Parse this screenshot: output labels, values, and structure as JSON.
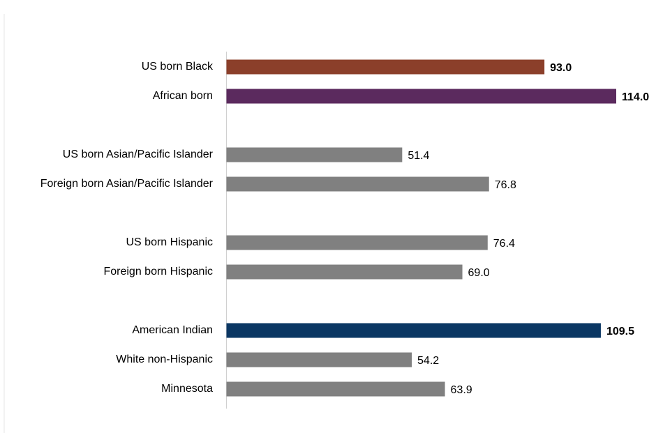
{
  "chart_data": {
    "type": "bar",
    "orientation": "horizontal",
    "categories": [
      "US born Black",
      "African born",
      null,
      "US born Asian/Pacific Islander",
      "Foreign born Asian/Pacific Islander",
      null,
      "US born Hispanic",
      "Foreign born Hispanic",
      null,
      "American Indian",
      "White non-Hispanic",
      "Minnesota"
    ],
    "values": [
      93.0,
      114.0,
      null,
      51.4,
      76.8,
      null,
      76.4,
      69.0,
      null,
      109.5,
      54.2,
      63.9
    ],
    "value_labels": [
      "93.0",
      "114.0",
      null,
      "51.4",
      "76.8",
      null,
      "76.4",
      "69.0",
      null,
      "109.5",
      "54.2",
      "63.9"
    ],
    "colors": [
      "#8b3f2a",
      "#5b2a5e",
      null,
      "#808080",
      "#808080",
      null,
      "#808080",
      "#808080",
      null,
      "#0b3763",
      "#808080",
      "#808080"
    ],
    "xlim": [
      0,
      114
    ]
  }
}
